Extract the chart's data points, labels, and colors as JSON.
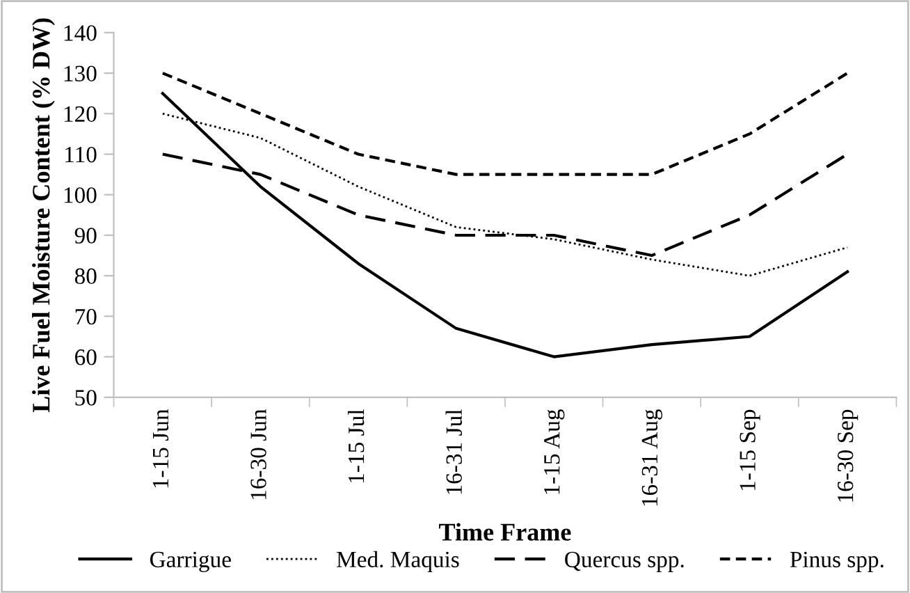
{
  "chart_data": {
    "type": "line",
    "xlabel": "Time Frame",
    "ylabel": "Live Fuel Moisture Content (% DW)",
    "categories": [
      "1-15 Jun",
      "16-30 Jun",
      "1-15 Jul",
      "16-31 Jul",
      "1-15 Aug",
      "16-31 Aug",
      "1-15 Sep",
      "16-30 Sep"
    ],
    "series": [
      {
        "name": "Garrigue",
        "color": "#000000",
        "line_style": "solid",
        "values": [
          125,
          102,
          83,
          67,
          60,
          63,
          65,
          81
        ]
      },
      {
        "name": "Med. Maquis",
        "color": "#000000",
        "line_style": "dotted",
        "values": [
          120,
          114,
          102,
          92,
          89,
          84,
          80,
          87
        ]
      },
      {
        "name": "Quercus spp.",
        "color": "#000000",
        "line_style": "long dashed",
        "values": [
          110,
          105,
          95,
          90,
          90,
          85,
          95,
          110
        ]
      },
      {
        "name": "Pinus spp.",
        "color": "#000000",
        "line_style": "dashed",
        "values": [
          130,
          120,
          110,
          105,
          105,
          105,
          115,
          130
        ]
      }
    ],
    "ylim": [
      50,
      140
    ],
    "yticks": [
      50,
      60,
      70,
      80,
      90,
      100,
      110,
      120,
      130,
      140
    ],
    "grid": false,
    "legend": "bottom",
    "marker": "none"
  }
}
